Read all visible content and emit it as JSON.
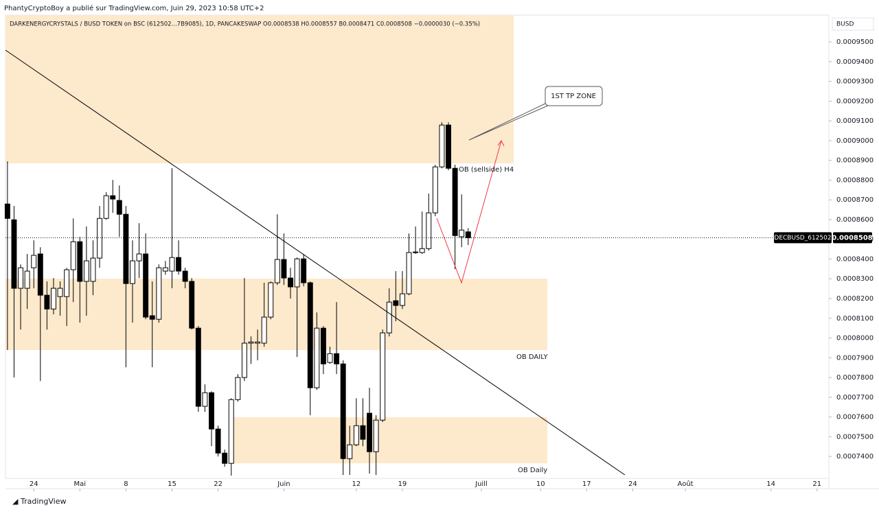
{
  "header": "PhantyCryptoBoy a publié sur TradingView.com, Juin 29, 2023 10:58 UTC+2",
  "footer": "TradingView",
  "chart_data": {
    "type": "candlestick",
    "legend": "DARKENERGYCRYSTALS / BUSD TOKEN on BSC (612502...7B9085), 1D, PANCAKESWAP  O0.0008538 H0.0008557 B0.0008471 C0.0008508 −0.0000030 (−0.35%)",
    "currency": "BUSD",
    "symbol_label": "DECBUSD_612502",
    "up_color": "#ffffff",
    "down_color": "#000000",
    "outline_color": "#000000",
    "open": [
      0.0008679,
      0.0008599,
      0.0008252,
      0.0008252,
      0.0008356,
      0.0008426,
      0.0008217,
      0.0008147,
      0.000821,
      0.000821,
      0.0008346,
      0.0008488,
      0.0008287,
      0.0008287,
      0.0008405,
      0.0008606,
      0.0008721,
      0.0008697,
      0.0008627,
      0.0008276,
      0.0008391,
      0.0008426,
      0.0008113,
      0.0008095,
      0.0008339,
      0.0008339,
      0.0008408,
      0.0008339,
      0.0008287,
      0.000805,
      0.0007654,
      0.0007723,
      0.0007539,
      0.0007417,
      0.0007365,
      0.0007688,
      0.00078,
      0.0007974,
      0.0007974,
      0.0007974,
      0.0008106,
      0.000828,
      0.0008398,
      0.0008304,
      0.0008259,
      0.0008401,
      0.000828,
      0.0007748,
      0.000805,
      0.0007876,
      0.0007921,
      0.0007869,
      0.0007389,
      0.0007459,
      0.0007556,
      0.0007619,
      0.0007424,
      0.0007584,
      0.0008026,
      0.0008189,
      0.0008165,
      0.0008224,
      0.0008433,
      0.0008433,
      0.0008453,
      0.0008634,
      0.0008867,
      0.0009079,
      0.000886,
      0.0008513,
      0.0008538
    ],
    "high": [
      0.0008895,
      0.0008669,
      0.0008373,
      0.0008426,
      0.0008495,
      0.000846,
      0.0008287,
      0.0008304,
      0.0008287,
      0.0008356,
      0.0008606,
      0.0008513,
      0.0008565,
      0.0008495,
      0.0008669,
      0.0008739,
      0.0008801,
      0.0008773,
      0.0008669,
      0.0008495,
      0.0008582,
      0.000853,
      0.0008287,
      0.0008373,
      0.0008391,
      0.000886,
      0.0008495,
      0.0008356,
      0.0008304,
      0.0008061,
      0.0007765,
      0.000773,
      0.0007556,
      0.0007435,
      0.0007695,
      0.0007817,
      0.0008304,
      0.0008008,
      0.0008043,
      0.000828,
      0.0008287,
      0.0008627,
      0.000853,
      0.0008356,
      0.0008408,
      0.0008426,
      0.0008287,
      0.000813,
      0.0008061,
      0.0007956,
      0.0008182,
      0.0007887,
      0.0007556,
      0.0007695,
      0.0007695,
      0.0007748,
      0.0007609,
      0.0008043,
      0.0008252,
      0.0008339,
      0.0008339,
      0.000853,
      0.0008565,
      0.0008641,
      0.0008732,
      0.0008878,
      0.0009093,
      0.0009093,
      0.0008878,
      0.0008728,
      0.0008557
    ],
    "low": [
      0.0007939,
      0.00078,
      0.0008043,
      0.0008147,
      0.0008252,
      0.0007782,
      0.0008043,
      0.000812,
      0.0008113,
      0.0008061,
      0.0008182,
      0.0008078,
      0.0008113,
      0.0008217,
      0.0008356,
      0.0008599,
      0.0008634,
      0.0008513,
      0.0007852,
      0.0008078,
      0.0008304,
      0.0008095,
      0.0007852,
      0.0008078,
      0.0008321,
      0.0008252,
      0.0008321,
      0.0008252,
      0.0008043,
      0.0007626,
      0.0007626,
      0.0007452,
      0.00074,
      0.0007348,
      0.0007303,
      0.0007678,
      0.0007782,
      0.0007869,
      0.0007887,
      0.0007956,
      0.0008095,
      0.0008269,
      0.0008269,
      0.00082,
      0.0007904,
      0.0008262,
      0.0007609,
      0.0007737,
      0.0007817,
      0.0007869,
      0.0007817,
      0.0007306,
      0.0007306,
      0.0007452,
      0.0007452,
      0.0007313,
      0.0007306,
      0.0007574,
      0.0008008,
      0.0008085,
      0.0008147,
      0.0008217,
      0.0008426,
      0.0008426,
      0.0008443,
      0.0008617,
      0.000886,
      0.000885,
      0.0008349,
      0.000846,
      0.0008471
    ],
    "close": [
      0.0008606,
      0.0008252,
      0.0008356,
      0.0008339,
      0.0008419,
      0.0008217,
      0.0008147,
      0.0008252,
      0.0008252,
      0.0008346,
      0.0008488,
      0.0008287,
      0.0008391,
      0.0008405,
      0.0008606,
      0.0008721,
      0.0008704,
      0.0008627,
      0.0008276,
      0.0008391,
      0.0008426,
      0.0008106,
      0.0008095,
      0.0008356,
      0.0008356,
      0.0008408,
      0.0008339,
      0.0008287,
      0.000805,
      0.0007654,
      0.0007723,
      0.0007539,
      0.0007417,
      0.0007365,
      0.0007688,
      0.00078,
      0.0007974,
      0.000798,
      0.000798,
      0.0008106,
      0.000828,
      0.0008398,
      0.0008304,
      0.0008259,
      0.0008401,
      0.000828,
      0.0007748,
      0.000805,
      0.0007869,
      0.0007921,
      0.0007869,
      0.0007389,
      0.0007459,
      0.0007556,
      0.0007487,
      0.0007424,
      0.0007584,
      0.0008026,
      0.0008182,
      0.0008165,
      0.0008224,
      0.0008433,
      0.0008436,
      0.0008453,
      0.0008634,
      0.0008867,
      0.0009079,
      0.000886,
      0.0008519,
      0.0008547,
      0.0008508
    ],
    "xlim": [
      -0.3,
      124.8
    ],
    "xticks": [
      {
        "value": 4,
        "label": "24"
      },
      {
        "value": 11,
        "label": "Mai"
      },
      {
        "value": 18,
        "label": "8"
      },
      {
        "value": 25,
        "label": "15"
      },
      {
        "value": 32,
        "label": "22"
      },
      {
        "value": 42,
        "label": "Juin"
      },
      {
        "value": 53,
        "label": "12"
      },
      {
        "value": 60,
        "label": "19"
      },
      {
        "value": 72,
        "label": "Juill"
      },
      {
        "value": 81,
        "label": "10"
      },
      {
        "value": 88,
        "label": "17"
      },
      {
        "value": 95,
        "label": "24"
      },
      {
        "value": 103,
        "label": "Août"
      },
      {
        "value": 116,
        "label": "14"
      },
      {
        "value": 123,
        "label": "21"
      }
    ],
    "ylim": [
      0.0007289,
      0.0009636
    ],
    "yticks": [
      {
        "value": 0.00074,
        "label": "0.0007400"
      },
      {
        "value": 0.00075,
        "label": "0.0007500"
      },
      {
        "value": 0.00076,
        "label": "0.0007600"
      },
      {
        "value": 0.00077,
        "label": "0.0007700"
      },
      {
        "value": 0.00078,
        "label": "0.0007800"
      },
      {
        "value": 0.00079,
        "label": "0.0007900"
      },
      {
        "value": 0.0008,
        "label": "0.0008000"
      },
      {
        "value": 0.00081,
        "label": "0.0008100"
      },
      {
        "value": 0.00082,
        "label": "0.0008200"
      },
      {
        "value": 0.00083,
        "label": "0.0008300"
      },
      {
        "value": 0.00084,
        "label": "0.0008400"
      },
      {
        "value": 0.00085,
        "label": "0.0008500"
      },
      {
        "value": 0.00086,
        "label": "0.0008600"
      },
      {
        "value": 0.00087,
        "label": "0.0008700"
      },
      {
        "value": 0.00088,
        "label": "0.0008800"
      },
      {
        "value": 0.00089,
        "label": "0.0008900"
      },
      {
        "value": 0.0009,
        "label": "0.0009000"
      },
      {
        "value": 0.00091,
        "label": "0.0009100"
      },
      {
        "value": 0.00092,
        "label": "0.0009200"
      },
      {
        "value": 0.00093,
        "label": "0.0009300"
      },
      {
        "value": 0.00094,
        "label": "0.0009400"
      },
      {
        "value": 0.00095,
        "label": "0.0009500"
      }
    ],
    "grid": false,
    "annotations": [
      "OB (sellside) H4",
      "OB DAILY",
      "OB Daily",
      "1ST TP ZONE"
    ]
  }
}
